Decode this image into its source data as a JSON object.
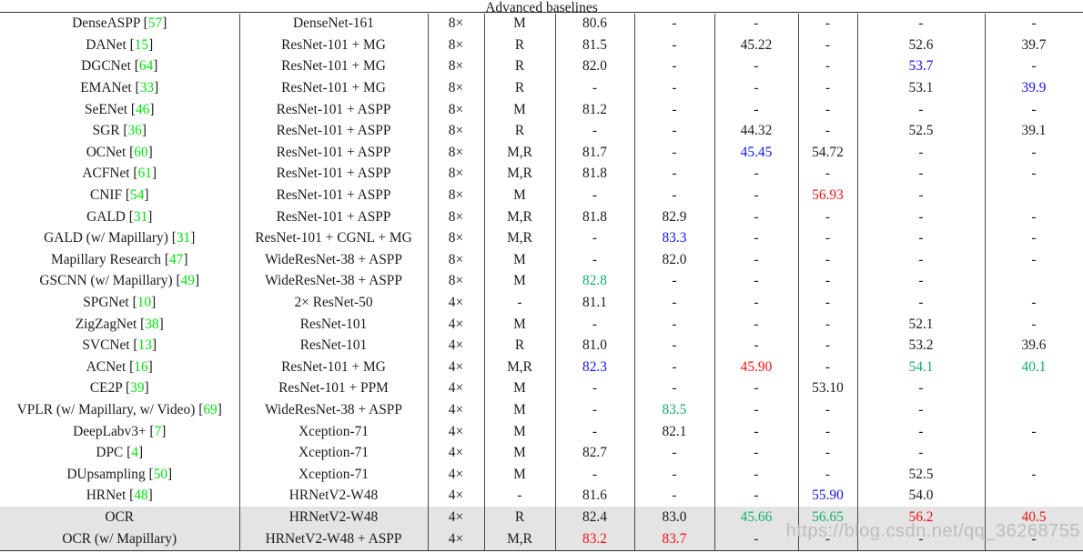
{
  "table": {
    "section_header": "Advanced baselines",
    "rows": [
      {
        "method": "DenseASPP",
        "cite": "57",
        "backbone": "DenseNet-161",
        "stride": "8×",
        "eval": "M",
        "highlight": false,
        "values": [
          "80.6",
          "-",
          "-",
          "-",
          "-",
          "-"
        ]
      },
      {
        "method": "DANet",
        "cite": "15",
        "backbone": "ResNet-101 + MG",
        "stride": "8×",
        "eval": "R",
        "highlight": false,
        "values": [
          "81.5",
          "-",
          "45.22",
          "-",
          "52.6",
          "39.7"
        ]
      },
      {
        "method": "DGCNet",
        "cite": "64",
        "backbone": "ResNet-101 + MG",
        "stride": "8×",
        "eval": "R",
        "highlight": false,
        "values": [
          "82.0",
          "-",
          "-",
          "-",
          {
            "t": "53.7",
            "c": "blue"
          },
          "-"
        ]
      },
      {
        "method": "EMANet",
        "cite": "33",
        "backbone": "ResNet-101 + MG",
        "stride": "8×",
        "eval": "R",
        "highlight": false,
        "values": [
          "-",
          "-",
          "-",
          "-",
          "53.1",
          {
            "t": "39.9",
            "c": "blue"
          }
        ]
      },
      {
        "method": "SeENet",
        "cite": "46",
        "backbone": "ResNet-101 + ASPP",
        "stride": "8×",
        "eval": "M",
        "highlight": false,
        "values": [
          "81.2",
          "-",
          "-",
          "-",
          "-",
          "-"
        ]
      },
      {
        "method": "SGR",
        "cite": "36",
        "backbone": "ResNet-101 + ASPP",
        "stride": "8×",
        "eval": "R",
        "highlight": false,
        "values": [
          "-",
          "-",
          "44.32",
          "-",
          "52.5",
          "39.1"
        ]
      },
      {
        "method": "OCNet",
        "cite": "60",
        "backbone": "ResNet-101 + ASPP",
        "stride": "8×",
        "eval": "M,R",
        "highlight": false,
        "values": [
          "81.7",
          "-",
          {
            "t": "45.45",
            "c": "blue"
          },
          "54.72",
          "-",
          "-"
        ]
      },
      {
        "method": "ACFNet",
        "cite": "61",
        "backbone": "ResNet-101 + ASPP",
        "stride": "8×",
        "eval": "M,R",
        "highlight": false,
        "values": [
          "81.8",
          "-",
          "-",
          "-",
          "-",
          "-"
        ]
      },
      {
        "method": "CNIF",
        "cite": "54",
        "backbone": "ResNet-101 + ASPP",
        "stride": "8×",
        "eval": "M",
        "highlight": false,
        "values": [
          "-",
          "-",
          "-",
          {
            "t": "56.93",
            "c": "red"
          },
          "-",
          ""
        ]
      },
      {
        "method": "GALD",
        "cite": "31",
        "backbone": "ResNet-101 + ASPP",
        "stride": "8×",
        "eval": "M,R",
        "highlight": false,
        "values": [
          "81.8",
          "82.9",
          "-",
          "-",
          "-",
          "-"
        ]
      },
      {
        "method": "GALD (w/ Mapillary)",
        "cite": "31",
        "backbone": "ResNet-101 + CGNL + MG",
        "stride": "8×",
        "eval": "M,R",
        "highlight": false,
        "values": [
          "-",
          {
            "t": "83.3",
            "c": "blue"
          },
          "-",
          "-",
          "-",
          "-"
        ]
      },
      {
        "method": "Mapillary Research",
        "cite": "47",
        "backbone": "WideResNet-38 + ASPP",
        "stride": "8×",
        "eval": "M",
        "highlight": false,
        "values": [
          "-",
          "82.0",
          "-",
          "-",
          "-",
          "-"
        ]
      },
      {
        "method": "GSCNN (w/ Mapillary)",
        "cite": "49",
        "backbone": "WideResNet-38 + ASPP",
        "stride": "8×",
        "eval": "M",
        "highlight": false,
        "values": [
          {
            "t": "82.8",
            "c": "green"
          },
          "-",
          "-",
          "-",
          "-",
          ""
        ]
      },
      {
        "method": "SPGNet",
        "cite": "10",
        "backbone": "2× ResNet-50",
        "stride": "4×",
        "eval": "-",
        "highlight": false,
        "values": [
          "81.1",
          "-",
          "-",
          "-",
          "-",
          "-"
        ]
      },
      {
        "method": "ZigZagNet",
        "cite": "38",
        "backbone": "ResNet-101",
        "stride": "4×",
        "eval": "M",
        "highlight": false,
        "values": [
          "-",
          "-",
          "-",
          "-",
          "52.1",
          "-"
        ]
      },
      {
        "method": "SVCNet",
        "cite": "13",
        "backbone": "ResNet-101",
        "stride": "4×",
        "eval": "R",
        "highlight": false,
        "values": [
          "81.0",
          "-",
          "-",
          "-",
          "53.2",
          "39.6"
        ]
      },
      {
        "method": "ACNet",
        "cite": "16",
        "backbone": "ResNet-101 + MG",
        "stride": "4×",
        "eval": "M,R",
        "highlight": false,
        "values": [
          {
            "t": "82.3",
            "c": "blue"
          },
          "-",
          {
            "t": "45.90",
            "c": "red"
          },
          "-",
          {
            "t": "54.1",
            "c": "green"
          },
          {
            "t": "40.1",
            "c": "green"
          }
        ]
      },
      {
        "method": "CE2P",
        "cite": "39",
        "backbone": "ResNet-101 + PPM",
        "stride": "4×",
        "eval": "M",
        "highlight": false,
        "values": [
          "-",
          "-",
          "-",
          "53.10",
          "-",
          ""
        ]
      },
      {
        "method": "VPLR (w/ Mapillary, w/ Video)",
        "cite": "69",
        "backbone": "WideResNet-38 + ASPP",
        "stride": "4×",
        "eval": "M",
        "highlight": false,
        "values": [
          "-",
          {
            "t": "83.5",
            "c": "green"
          },
          "-",
          "-",
          "-",
          ""
        ]
      },
      {
        "method": "DeepLabv3+",
        "cite": "7",
        "backbone": "Xception-71",
        "stride": "4×",
        "eval": "M",
        "highlight": false,
        "values": [
          "-",
          "82.1",
          "-",
          "-",
          "-",
          "-"
        ]
      },
      {
        "method": "DPC",
        "cite": "4",
        "backbone": "Xception-71",
        "stride": "4×",
        "eval": "M",
        "highlight": false,
        "values": [
          "82.7",
          "-",
          "-",
          "-",
          "-",
          ""
        ]
      },
      {
        "method": "DUpsampling",
        "cite": "50",
        "backbone": "Xception-71",
        "stride": "4×",
        "eval": "M",
        "highlight": false,
        "values": [
          "-",
          "-",
          "-",
          "-",
          "52.5",
          "-"
        ]
      },
      {
        "method": "HRNet",
        "cite": "48",
        "backbone": "HRNetV2-W48",
        "stride": "4×",
        "eval": "-",
        "highlight": false,
        "values": [
          "81.6",
          "-",
          "-",
          {
            "t": "55.90",
            "c": "blue"
          },
          "54.0",
          ""
        ]
      },
      {
        "method": "OCR",
        "cite": null,
        "backbone": "HRNetV2-W48",
        "stride": "4×",
        "eval": "R",
        "highlight": true,
        "values": [
          "82.4",
          "83.0",
          {
            "t": "45.66",
            "c": "green"
          },
          {
            "t": "56.65",
            "c": "green"
          },
          {
            "t": "56.2",
            "c": "red"
          },
          {
            "t": "40.5",
            "c": "red"
          }
        ]
      },
      {
        "method": "OCR (w/ Mapillary)",
        "cite": null,
        "backbone": "HRNetV2-W48 + ASPP",
        "stride": "4×",
        "eval": "M,R",
        "highlight": true,
        "values": [
          {
            "t": "83.2",
            "c": "red"
          },
          {
            "t": "83.7",
            "c": "red"
          },
          "-",
          "-",
          "-",
          "-"
        ]
      }
    ]
  },
  "watermark": "https://blog.csdn.net/qq_36268755",
  "palette": {
    "black": "#1b1b1b",
    "blue": "#1313f0",
    "red": "#f21111",
    "green": "#11af6b",
    "citation": "#00e30e",
    "row_highlight": "#e4e4e4",
    "watermark_gray": "#bcbcbc",
    "line": "#474747"
  }
}
